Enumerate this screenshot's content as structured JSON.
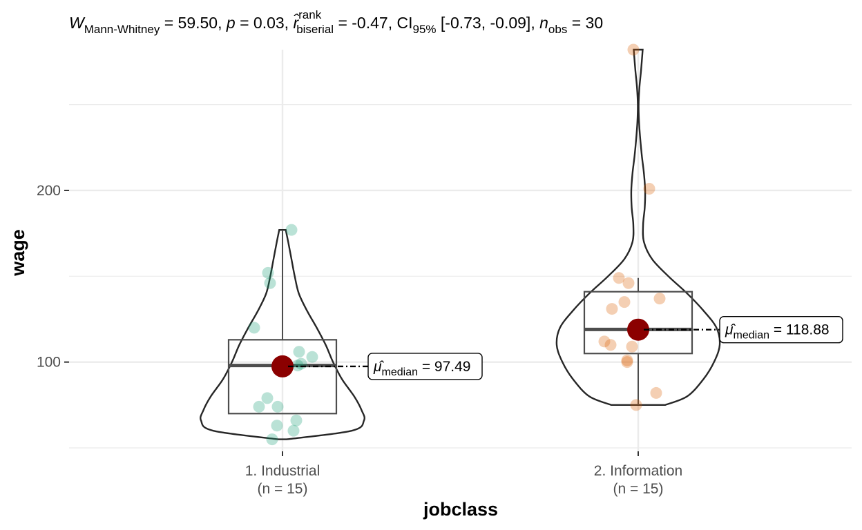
{
  "chart_data": {
    "type": "violin",
    "subtitle": {
      "W_symbol": "W",
      "W_sub": "Mann-Whitney",
      "W_value": " = 59.50, ",
      "p_symbol": "p",
      "p_value": " = 0.03, ",
      "r_symbol": "r̂",
      "r_sup": "rank",
      "r_sub": "biserial",
      "r_value": " = -0.47, CI",
      "ci_sub": "95%",
      "ci_value": " [-0.73, -0.09], ",
      "n_symbol": "n",
      "n_sub": "obs",
      "n_value": " = 30"
    },
    "xlabel": "jobclass",
    "ylabel": "wage",
    "ylim": [
      48,
      282
    ],
    "y_ticks": [
      100,
      200
    ],
    "y_tick_labels": [
      "100",
      "200"
    ],
    "categories": [
      "1. Industrial",
      "2. Information"
    ],
    "category_counts": [
      "(n = 15)",
      "(n = 15)"
    ],
    "colors": {
      "group1": "#1b9e77",
      "group2": "#d95f02",
      "centrality": "#8b0000",
      "grid": "#ebebeb"
    },
    "groups": [
      {
        "name": "1. Industrial",
        "n_label": "(n = 15)",
        "points": [
          177,
          152,
          146,
          120,
          106,
          103,
          99,
          98,
          79,
          74,
          74,
          66,
          63,
          60,
          55
        ],
        "box": {
          "lower": 70,
          "q1": 70,
          "median": 98,
          "q3": 113,
          "upper": 177,
          "min": 55,
          "max": 177
        },
        "median_label_symbol": "μ̂",
        "median_label_sub": "median",
        "median_label_value": " = 97.49",
        "median": 97.49,
        "violin": [
          [
            55,
            0.05
          ],
          [
            60,
            0.85
          ],
          [
            66,
            1.0
          ],
          [
            72,
            0.97
          ],
          [
            80,
            0.88
          ],
          [
            90,
            0.73
          ],
          [
            100,
            0.62
          ],
          [
            110,
            0.53
          ],
          [
            120,
            0.42
          ],
          [
            130,
            0.3
          ],
          [
            140,
            0.2
          ],
          [
            150,
            0.15
          ],
          [
            160,
            0.11
          ],
          [
            170,
            0.07
          ],
          [
            177,
            0.04
          ]
        ]
      },
      {
        "name": "2. Information",
        "n_label": "(n = 15)",
        "points": [
          282,
          201,
          149,
          146,
          137,
          135,
          131,
          121,
          112,
          110,
          109,
          101,
          100,
          82,
          75
        ],
        "box": {
          "lower": 75,
          "q1": 105,
          "median": 119,
          "q3": 141,
          "upper": 149,
          "min": 75,
          "max": 282
        },
        "median_label_symbol": "μ̂",
        "median_label_sub": "median",
        "median_label_value": " = 118.88",
        "median": 118.88,
        "violin": [
          [
            75,
            0.33
          ],
          [
            80,
            0.6
          ],
          [
            90,
            0.8
          ],
          [
            100,
            0.93
          ],
          [
            110,
            1.0
          ],
          [
            120,
            0.96
          ],
          [
            130,
            0.8
          ],
          [
            140,
            0.6
          ],
          [
            150,
            0.37
          ],
          [
            160,
            0.17
          ],
          [
            170,
            0.07
          ],
          [
            180,
            0.06
          ],
          [
            190,
            0.08
          ],
          [
            200,
            0.085
          ],
          [
            210,
            0.07
          ],
          [
            220,
            0.045
          ],
          [
            230,
            0.025
          ],
          [
            240,
            0.01
          ],
          [
            250,
            0.005
          ],
          [
            260,
            0.015
          ],
          [
            270,
            0.035
          ],
          [
            282,
            0.055
          ]
        ]
      }
    ],
    "grid": true,
    "legend": "none"
  }
}
